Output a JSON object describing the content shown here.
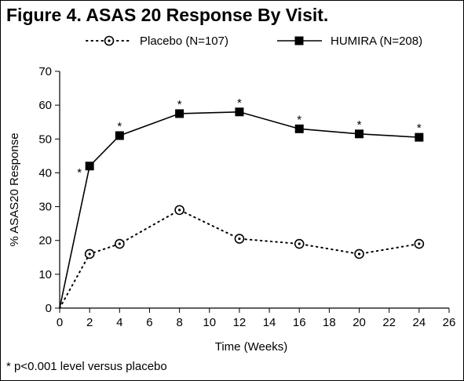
{
  "title": "Figure 4. ASAS 20 Response By Visit.",
  "footnote": "* p<0.001 level versus placebo",
  "chart_data": {
    "type": "line",
    "xlabel": "Time (Weeks)",
    "ylabel": "% ASAS20 Response",
    "xlim": [
      0,
      26
    ],
    "ylim": [
      0,
      70
    ],
    "x_ticks": [
      "0",
      "2",
      "4",
      "6",
      "8",
      "10",
      "12",
      "14",
      "16",
      "18",
      "20",
      "22",
      "24",
      "26"
    ],
    "y_ticks": [
      "0",
      "10",
      "20",
      "30",
      "40",
      "50",
      "60",
      "70"
    ],
    "legend_position": "top",
    "series": [
      {
        "name": "Placebo (N=107)",
        "style": "dotted",
        "marker": "circle",
        "color": "#000000",
        "points": [
          [
            0,
            0
          ],
          [
            2,
            16
          ],
          [
            4,
            19
          ],
          [
            8,
            29
          ],
          [
            12,
            20.5
          ],
          [
            16,
            19
          ],
          [
            20,
            16
          ],
          [
            24,
            19
          ]
        ]
      },
      {
        "name": "HUMIRA (N=208)",
        "style": "solid",
        "marker": "square",
        "color": "#000000",
        "points": [
          [
            0,
            0
          ],
          [
            2,
            42
          ],
          [
            4,
            51
          ],
          [
            8,
            57.5
          ],
          [
            12,
            58
          ],
          [
            16,
            53
          ],
          [
            20,
            51.5
          ],
          [
            24,
            50.5
          ]
        ]
      }
    ],
    "annotations": [
      {
        "text": "*",
        "x": 2,
        "y": 42
      },
      {
        "text": "*",
        "x": 4,
        "y": 51
      },
      {
        "text": "*",
        "x": 8,
        "y": 57.5
      },
      {
        "text": "*",
        "x": 12,
        "y": 58
      },
      {
        "text": "*",
        "x": 16,
        "y": 53
      },
      {
        "text": "*",
        "x": 20,
        "y": 51.5
      },
      {
        "text": "*",
        "x": 24,
        "y": 50.5
      }
    ]
  }
}
